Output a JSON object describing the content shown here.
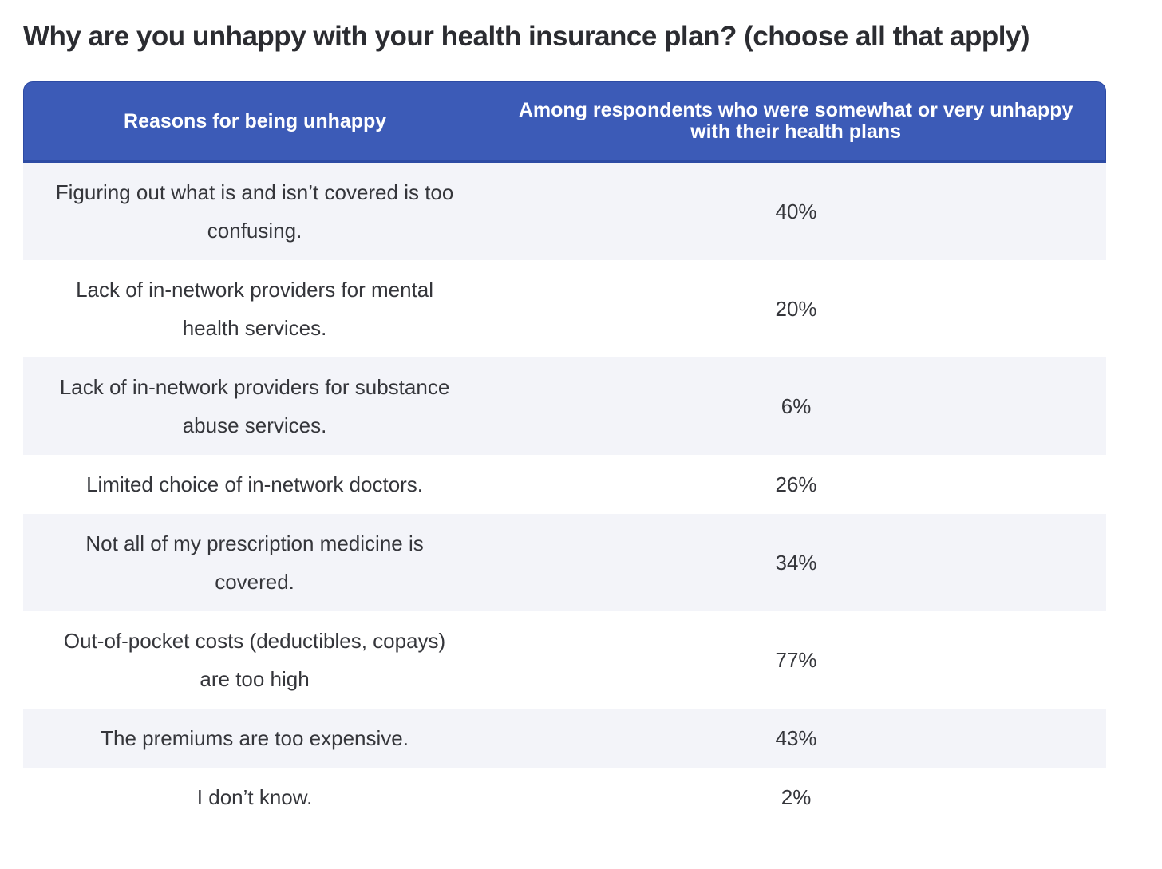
{
  "title": "Why are you unhappy with your health insurance plan? (choose all that apply)",
  "colors": {
    "header_background": "#3c5bb7",
    "header_border": "#2d4ba4",
    "header_text": "#ffffff",
    "row_alt_background": "#f3f4f9",
    "row_background": "#ffffff",
    "body_text": "#35363b",
    "title_text": "#2b2c31"
  },
  "table": {
    "header": {
      "reason": "Reasons for being unhappy",
      "respondents": [
        "Among respondents who were somewhat or very unhappy",
        "with their health plans"
      ]
    },
    "rows": [
      {
        "reason": [
          "Figuring out what is and isn’t covered is too",
          "confusing."
        ],
        "value": "40%"
      },
      {
        "reason": [
          "Lack of in-network providers for mental",
          "health services."
        ],
        "value": "20%"
      },
      {
        "reason": [
          "Lack of in-network providers for substance",
          "abuse services."
        ],
        "value": "6%"
      },
      {
        "reason": [
          "Limited choice of in-network doctors."
        ],
        "value": "26%"
      },
      {
        "reason": [
          "Not all of my prescription medicine is",
          "covered."
        ],
        "value": "34%"
      },
      {
        "reason": [
          "Out-of-pocket costs (deductibles, copays)",
          "are too high"
        ],
        "value": "77%"
      },
      {
        "reason": [
          "The premiums are too expensive."
        ],
        "value": "43%"
      },
      {
        "reason": [
          "I don’t know."
        ],
        "value": "2%"
      }
    ]
  },
  "chart_data": {
    "type": "table",
    "title": "Why are you unhappy with your health insurance plan? (choose all that apply)",
    "columns": [
      "Reasons for being unhappy",
      "Among respondents who were somewhat or very unhappy with their health plans"
    ],
    "categories": [
      "Figuring out what is and isn’t covered is too confusing.",
      "Lack of in-network providers for mental health services.",
      "Lack of in-network providers for substance abuse services.",
      "Limited choice of in-network doctors.",
      "Not all of my prescription medicine is covered.",
      "Out-of-pocket costs (deductibles, copays) are too high",
      "The premiums are too expensive.",
      "I don’t know."
    ],
    "values": [
      40,
      20,
      6,
      26,
      34,
      77,
      43,
      2
    ],
    "value_unit": "%"
  }
}
